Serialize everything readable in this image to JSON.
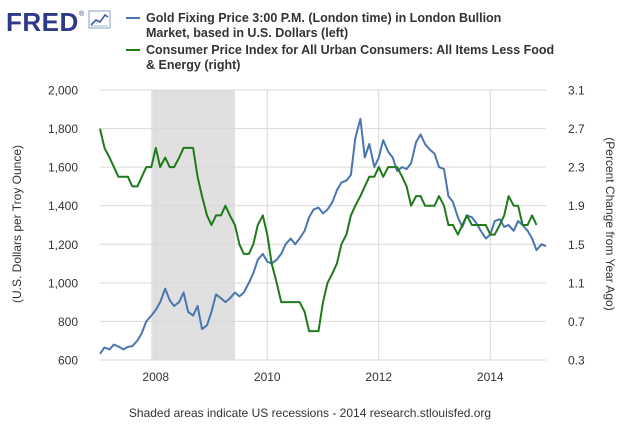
{
  "brand": {
    "name": "FRED",
    "trademark": "®"
  },
  "footer": {
    "note": "Shaded areas indicate US recessions - 2014 research.stlouisfed.org"
  },
  "colors": {
    "gold_series": "#4a76b0",
    "cpi_series": "#1f7a1a",
    "recession_shade": "#e0e0e0",
    "grid": "#d9d9d9",
    "text": "#333333"
  },
  "chart_data": {
    "type": "line",
    "title": "",
    "legend_placement": "top",
    "grid": true,
    "x": {
      "label": "",
      "range": [
        2007.0,
        2015.0
      ],
      "ticks": [
        2008,
        2010,
        2012,
        2014
      ],
      "tick_labels": [
        "2008",
        "2010",
        "2012",
        "2014"
      ]
    },
    "y_left": {
      "label": "(U.S. Dollars per Troy Ounce)",
      "range": [
        600,
        2000
      ],
      "ticks": [
        600,
        800,
        1000,
        1200,
        1400,
        1600,
        1800,
        2000
      ],
      "tick_labels": [
        "600",
        "800",
        "1,000",
        "1,200",
        "1,400",
        "1,600",
        "1,800",
        "2,000"
      ]
    },
    "y_right": {
      "label": "(Percent Change from Year Ago)",
      "range": [
        0.3,
        3.1
      ],
      "ticks": [
        0.3,
        0.7,
        1.1,
        1.5,
        1.9,
        2.3,
        2.7,
        3.1
      ],
      "tick_labels": [
        "0.3",
        "0.7",
        "1.1",
        "1.5",
        "1.9",
        "2.3",
        "2.7",
        "3.1"
      ]
    },
    "recessions": [
      {
        "start": 2007.92,
        "end": 2009.42
      }
    ],
    "series": [
      {
        "name": "Gold Fixing Price 3:00 P.M. (London time) in London Bullion Market, based in U.S. Dollars (left)",
        "axis": "left",
        "points": [
          [
            2007.0,
            632
          ],
          [
            2007.08,
            665
          ],
          [
            2007.17,
            655
          ],
          [
            2007.25,
            680
          ],
          [
            2007.33,
            670
          ],
          [
            2007.42,
            655
          ],
          [
            2007.5,
            668
          ],
          [
            2007.58,
            672
          ],
          [
            2007.67,
            700
          ],
          [
            2007.75,
            740
          ],
          [
            2007.83,
            800
          ],
          [
            2007.92,
            830
          ],
          [
            2008.0,
            860
          ],
          [
            2008.08,
            900
          ],
          [
            2008.17,
            970
          ],
          [
            2008.25,
            910
          ],
          [
            2008.33,
            880
          ],
          [
            2008.42,
            900
          ],
          [
            2008.5,
            950
          ],
          [
            2008.58,
            850
          ],
          [
            2008.67,
            830
          ],
          [
            2008.75,
            880
          ],
          [
            2008.83,
            760
          ],
          [
            2008.92,
            780
          ],
          [
            2009.0,
            850
          ],
          [
            2009.08,
            940
          ],
          [
            2009.17,
            920
          ],
          [
            2009.25,
            900
          ],
          [
            2009.33,
            920
          ],
          [
            2009.42,
            950
          ],
          [
            2009.5,
            930
          ],
          [
            2009.58,
            950
          ],
          [
            2009.67,
            1000
          ],
          [
            2009.75,
            1050
          ],
          [
            2009.83,
            1120
          ],
          [
            2009.92,
            1150
          ],
          [
            2010.0,
            1110
          ],
          [
            2010.08,
            1100
          ],
          [
            2010.17,
            1120
          ],
          [
            2010.25,
            1150
          ],
          [
            2010.33,
            1200
          ],
          [
            2010.42,
            1230
          ],
          [
            2010.5,
            1200
          ],
          [
            2010.58,
            1230
          ],
          [
            2010.67,
            1270
          ],
          [
            2010.75,
            1340
          ],
          [
            2010.83,
            1380
          ],
          [
            2010.92,
            1390
          ],
          [
            2011.0,
            1360
          ],
          [
            2011.08,
            1380
          ],
          [
            2011.17,
            1420
          ],
          [
            2011.25,
            1480
          ],
          [
            2011.33,
            1520
          ],
          [
            2011.42,
            1530
          ],
          [
            2011.5,
            1560
          ],
          [
            2011.58,
            1750
          ],
          [
            2011.67,
            1850
          ],
          [
            2011.75,
            1650
          ],
          [
            2011.83,
            1720
          ],
          [
            2011.92,
            1600
          ],
          [
            2012.0,
            1650
          ],
          [
            2012.08,
            1740
          ],
          [
            2012.17,
            1680
          ],
          [
            2012.25,
            1650
          ],
          [
            2012.33,
            1580
          ],
          [
            2012.42,
            1600
          ],
          [
            2012.5,
            1590
          ],
          [
            2012.58,
            1620
          ],
          [
            2012.67,
            1730
          ],
          [
            2012.75,
            1770
          ],
          [
            2012.83,
            1720
          ],
          [
            2012.92,
            1690
          ],
          [
            2013.0,
            1670
          ],
          [
            2013.08,
            1600
          ],
          [
            2013.17,
            1590
          ],
          [
            2013.25,
            1450
          ],
          [
            2013.33,
            1420
          ],
          [
            2013.42,
            1340
          ],
          [
            2013.5,
            1290
          ],
          [
            2013.58,
            1350
          ],
          [
            2013.67,
            1340
          ],
          [
            2013.75,
            1310
          ],
          [
            2013.83,
            1270
          ],
          [
            2013.92,
            1230
          ],
          [
            2014.0,
            1250
          ],
          [
            2014.08,
            1320
          ],
          [
            2014.17,
            1330
          ],
          [
            2014.25,
            1290
          ],
          [
            2014.33,
            1300
          ],
          [
            2014.42,
            1270
          ],
          [
            2014.5,
            1320
          ],
          [
            2014.58,
            1300
          ],
          [
            2014.67,
            1270
          ],
          [
            2014.75,
            1230
          ],
          [
            2014.83,
            1170
          ],
          [
            2014.92,
            1200
          ],
          [
            2015.0,
            1190
          ]
        ]
      },
      {
        "name": "Consumer Price Index for All Urban Consumers: All Items Less Food & Energy (right)",
        "axis": "right",
        "points": [
          [
            2007.0,
            2.7
          ],
          [
            2007.08,
            2.5
          ],
          [
            2007.17,
            2.4
          ],
          [
            2007.25,
            2.3
          ],
          [
            2007.33,
            2.2
          ],
          [
            2007.42,
            2.2
          ],
          [
            2007.5,
            2.2
          ],
          [
            2007.58,
            2.1
          ],
          [
            2007.67,
            2.1
          ],
          [
            2007.75,
            2.2
          ],
          [
            2007.83,
            2.3
          ],
          [
            2007.92,
            2.3
          ],
          [
            2008.0,
            2.5
          ],
          [
            2008.08,
            2.3
          ],
          [
            2008.17,
            2.4
          ],
          [
            2008.25,
            2.3
          ],
          [
            2008.33,
            2.3
          ],
          [
            2008.42,
            2.4
          ],
          [
            2008.5,
            2.5
          ],
          [
            2008.58,
            2.5
          ],
          [
            2008.67,
            2.5
          ],
          [
            2008.75,
            2.2
          ],
          [
            2008.83,
            2.0
          ],
          [
            2008.92,
            1.8
          ],
          [
            2009.0,
            1.7
          ],
          [
            2009.08,
            1.8
          ],
          [
            2009.17,
            1.8
          ],
          [
            2009.25,
            1.9
          ],
          [
            2009.33,
            1.8
          ],
          [
            2009.42,
            1.7
          ],
          [
            2009.5,
            1.5
          ],
          [
            2009.58,
            1.4
          ],
          [
            2009.67,
            1.4
          ],
          [
            2009.75,
            1.5
          ],
          [
            2009.83,
            1.7
          ],
          [
            2009.92,
            1.8
          ],
          [
            2010.0,
            1.6
          ],
          [
            2010.08,
            1.3
          ],
          [
            2010.17,
            1.1
          ],
          [
            2010.25,
            0.9
          ],
          [
            2010.33,
            0.9
          ],
          [
            2010.42,
            0.9
          ],
          [
            2010.5,
            0.9
          ],
          [
            2010.58,
            0.9
          ],
          [
            2010.67,
            0.8
          ],
          [
            2010.75,
            0.6
          ],
          [
            2010.83,
            0.6
          ],
          [
            2010.92,
            0.6
          ],
          [
            2011.0,
            0.9
          ],
          [
            2011.08,
            1.1
          ],
          [
            2011.17,
            1.2
          ],
          [
            2011.25,
            1.3
          ],
          [
            2011.33,
            1.5
          ],
          [
            2011.42,
            1.6
          ],
          [
            2011.5,
            1.8
          ],
          [
            2011.58,
            1.9
          ],
          [
            2011.67,
            2.0
          ],
          [
            2011.75,
            2.1
          ],
          [
            2011.83,
            2.2
          ],
          [
            2011.92,
            2.2
          ],
          [
            2012.0,
            2.3
          ],
          [
            2012.08,
            2.2
          ],
          [
            2012.17,
            2.3
          ],
          [
            2012.25,
            2.3
          ],
          [
            2012.33,
            2.3
          ],
          [
            2012.42,
            2.2
          ],
          [
            2012.5,
            2.1
          ],
          [
            2012.58,
            1.9
          ],
          [
            2012.67,
            2.0
          ],
          [
            2012.75,
            2.0
          ],
          [
            2012.83,
            1.9
          ],
          [
            2012.92,
            1.9
          ],
          [
            2013.0,
            1.9
          ],
          [
            2013.08,
            2.0
          ],
          [
            2013.17,
            1.9
          ],
          [
            2013.25,
            1.7
          ],
          [
            2013.33,
            1.7
          ],
          [
            2013.42,
            1.6
          ],
          [
            2013.5,
            1.7
          ],
          [
            2013.58,
            1.8
          ],
          [
            2013.67,
            1.7
          ],
          [
            2013.75,
            1.7
          ],
          [
            2013.83,
            1.7
          ],
          [
            2013.92,
            1.7
          ],
          [
            2014.0,
            1.6
          ],
          [
            2014.08,
            1.6
          ],
          [
            2014.17,
            1.7
          ],
          [
            2014.25,
            1.8
          ],
          [
            2014.33,
            2.0
          ],
          [
            2014.42,
            1.9
          ],
          [
            2014.5,
            1.9
          ],
          [
            2014.58,
            1.7
          ],
          [
            2014.67,
            1.7
          ],
          [
            2014.75,
            1.8
          ],
          [
            2014.83,
            1.7
          ]
        ]
      }
    ]
  }
}
